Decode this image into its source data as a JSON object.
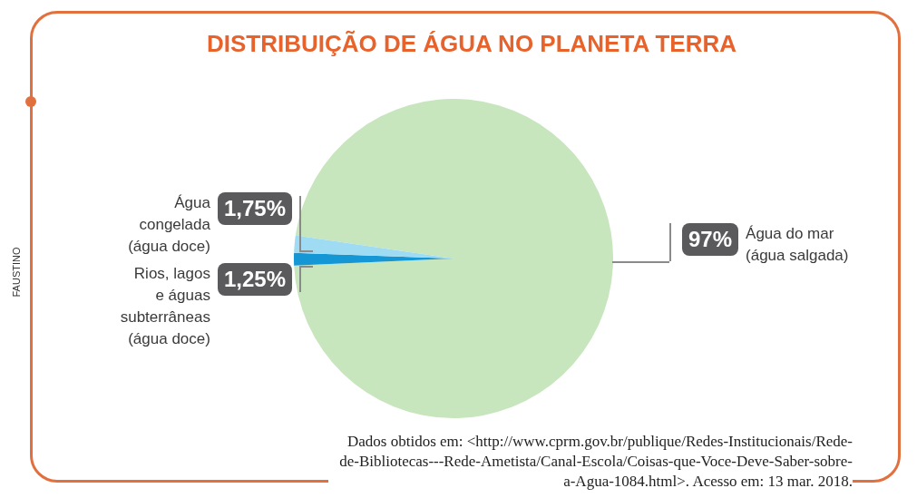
{
  "chart_data": {
    "type": "pie",
    "title": "DISTRIBUIÇÃO DE ÁGUA NO PLANETA TERRA",
    "categories": [
      "Água do mar\n(água salgada)",
      "Rios, lagos\ne águas\nsubterrâneas\n(água doce)",
      "Água\ncongelada\n(água doce)"
    ],
    "values": [
      97,
      1.25,
      1.75
    ],
    "colors": [
      "#c8e6bd",
      "#1497d4",
      "#9fdcf3"
    ],
    "value_labels": [
      "97%",
      "1,25%",
      "1,75%"
    ],
    "annotations": [
      "Dados obtidos em: <http://www.cprm.gov.br/publique/Redes-Institucionais/Rede-de-Bibliotecas---Rede-Ametista/Canal-Escola/Coisas-que-Voce-Deve-Saber-sobre-a-Agua-1084.html>. Acesso em: 13 mar. 2018.",
      "FAUSTINO"
    ]
  }
}
